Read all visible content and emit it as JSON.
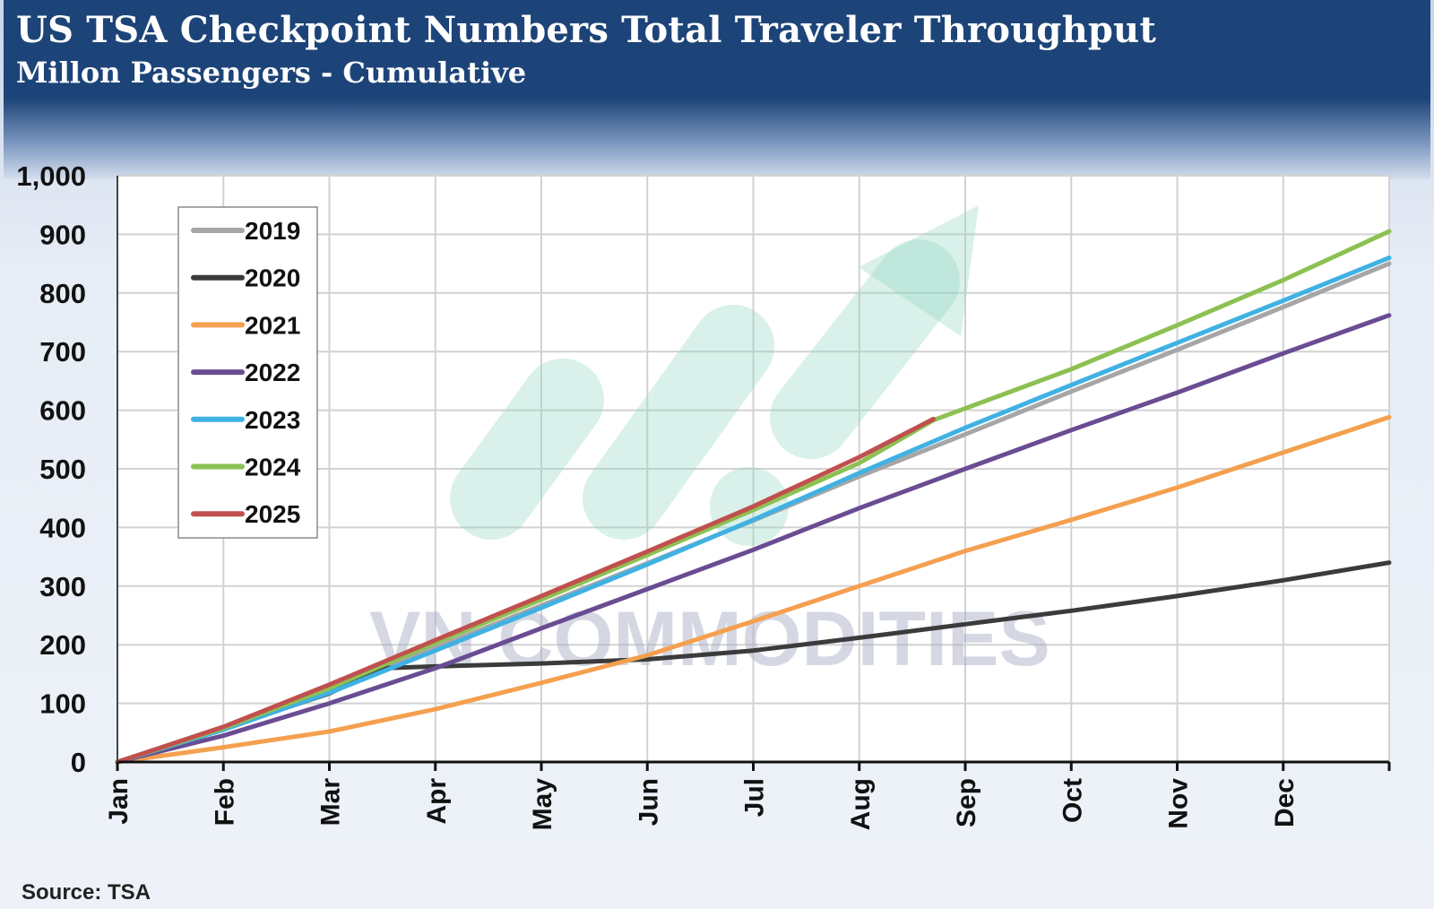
{
  "header": {
    "title": "US TSA Checkpoint Numbers Total Traveler Throughput",
    "subtitle": "Millon Passengers - Cumulative"
  },
  "source": "Source: TSA",
  "watermark": "VN COMMODITIES",
  "chart_data": {
    "type": "line",
    "title": "US TSA Checkpoint Numbers Total Traveler Throughput",
    "subtitle": "Millon Passengers - Cumulative",
    "xlabel": "",
    "ylabel": "",
    "categories": [
      "Jan",
      "Feb",
      "Mar",
      "Apr",
      "May",
      "Jun",
      "Jul",
      "Aug",
      "Sep",
      "Oct",
      "Nov",
      "Dec"
    ],
    "x_range_months": [
      0,
      12
    ],
    "ylim": [
      0,
      1000
    ],
    "ytick_labels": [
      "0",
      "100",
      "200",
      "300",
      "400",
      "500",
      "600",
      "700",
      "800",
      "900",
      "1,000"
    ],
    "grid": true,
    "legend_position": "top-left",
    "series": [
      {
        "name": "2019",
        "color": "#a6a6a6",
        "x": [
          0,
          1,
          2,
          3,
          4,
          5,
          6,
          7,
          8,
          9,
          10,
          11,
          12
        ],
        "values": [
          0,
          57,
          124,
          195,
          267,
          339,
          412,
          487,
          559,
          632,
          703,
          776,
          850
        ]
      },
      {
        "name": "2020",
        "color": "#3b3b3b",
        "x": [
          0,
          1,
          2,
          2.5,
          3,
          4,
          5,
          6,
          7,
          8,
          9,
          10,
          11,
          12
        ],
        "values": [
          0,
          57,
          117,
          160,
          163,
          168,
          175,
          190,
          212,
          235,
          258,
          283,
          310,
          340
        ]
      },
      {
        "name": "2021",
        "color": "#f4a050",
        "x": [
          0,
          1,
          2,
          3,
          4,
          5,
          6,
          7,
          8,
          9,
          10,
          11,
          12
        ],
        "values": [
          0,
          25,
          52,
          90,
          135,
          182,
          240,
          300,
          360,
          413,
          468,
          528,
          588
        ]
      },
      {
        "name": "2022",
        "color": "#6a4c93",
        "x": [
          0,
          1,
          2,
          3,
          4,
          5,
          6,
          7,
          8,
          9,
          10,
          11,
          12
        ],
        "values": [
          0,
          45,
          100,
          160,
          228,
          295,
          362,
          433,
          500,
          566,
          630,
          697,
          762
        ]
      },
      {
        "name": "2023",
        "color": "#3fb1e3",
        "x": [
          0,
          1,
          2,
          3,
          4,
          5,
          6,
          7,
          8,
          9,
          10,
          11,
          12
        ],
        "values": [
          0,
          55,
          118,
          190,
          263,
          337,
          413,
          493,
          570,
          643,
          715,
          787,
          860
        ]
      },
      {
        "name": "2024",
        "color": "#8cc152",
        "x": [
          0,
          1,
          2,
          3,
          4,
          5,
          6,
          7,
          7.7,
          9,
          10,
          11,
          12
        ],
        "values": [
          0,
          58,
          126,
          203,
          277,
          353,
          430,
          510,
          583,
          670,
          745,
          822,
          905
        ]
      },
      {
        "name": "2025",
        "color": "#c0504d",
        "x": [
          0,
          1,
          2,
          3,
          4,
          5,
          6,
          7,
          7.7
        ],
        "values": [
          0,
          60,
          132,
          208,
          283,
          359,
          436,
          520,
          585
        ]
      }
    ]
  }
}
